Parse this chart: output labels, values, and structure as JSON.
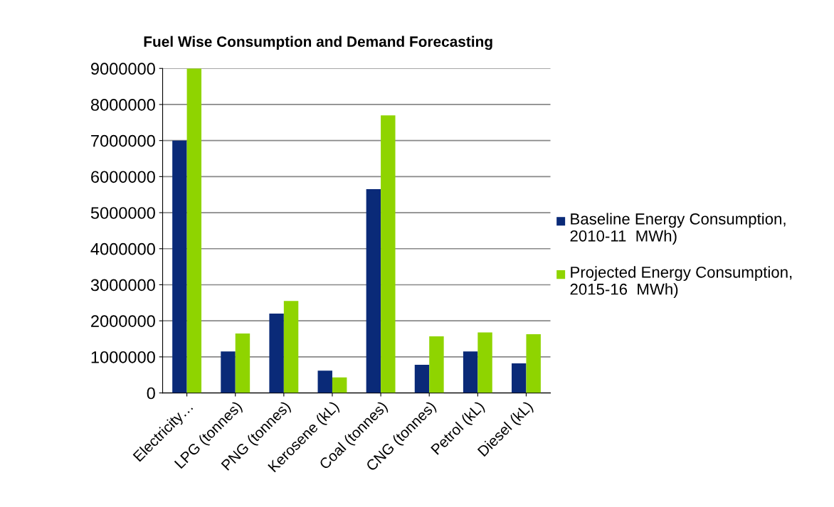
{
  "chart_data": {
    "type": "bar",
    "title": "Fuel Wise Consumption and Demand Forecasting",
    "categories": [
      "Electricity…",
      "LPG (tonnes)",
      "PNG (tonnes)",
      "Kerosene (kL)",
      "Coal (tonnes)",
      "CNG (tonnes)",
      "Petrol (kL)",
      "Diesel (kL)"
    ],
    "series": [
      {
        "name": "Baseline Energy Consumption, 2010-11  MWh)",
        "color": "#0a2a78",
        "values": [
          7000000,
          1150000,
          2200000,
          620000,
          5650000,
          780000,
          1150000,
          820000
        ]
      },
      {
        "name": "Projected Energy Consumption, 2015-16  MWh)",
        "color": "#8fd400",
        "values": [
          9000000,
          1650000,
          2550000,
          430000,
          7700000,
          1570000,
          1680000,
          1630000
        ]
      }
    ],
    "ylim": [
      0,
      9000000
    ],
    "yticks": [
      0,
      1000000,
      2000000,
      3000000,
      4000000,
      5000000,
      6000000,
      7000000,
      8000000,
      9000000
    ],
    "grid": "y",
    "legend": "right"
  }
}
